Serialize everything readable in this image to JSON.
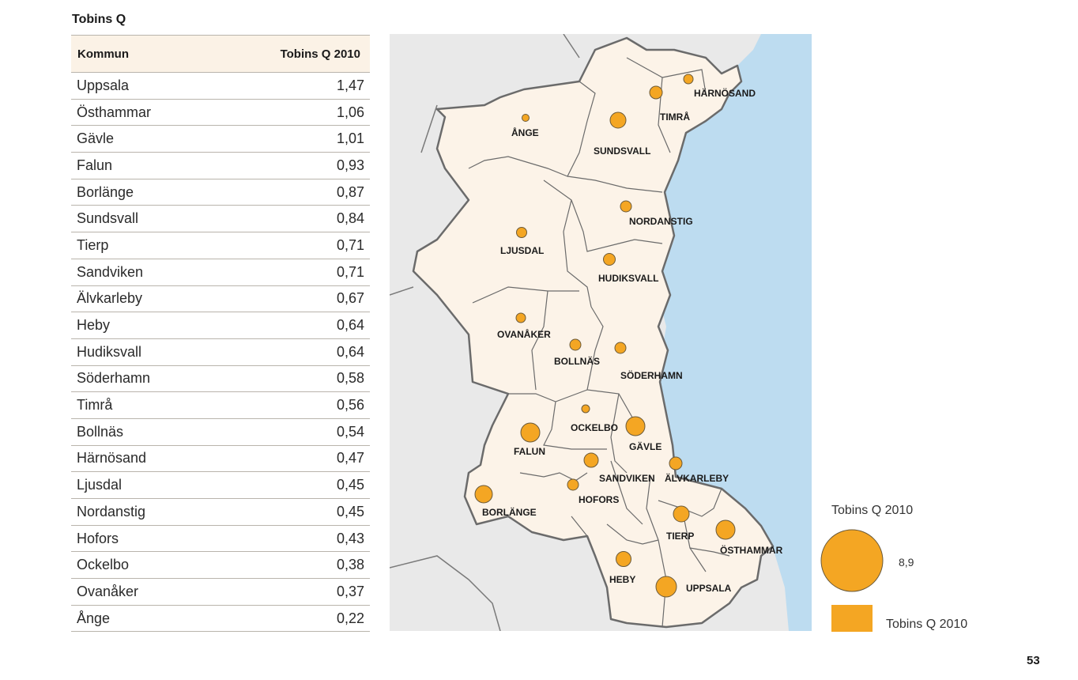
{
  "title": "Tobins Q",
  "table": {
    "header": {
      "col1": "Kommun",
      "col2": "Tobins Q 2010"
    },
    "rows": [
      {
        "name": "Uppsala",
        "value": "1,47"
      },
      {
        "name": "Östhammar",
        "value": "1,06"
      },
      {
        "name": "Gävle",
        "value": "1,01"
      },
      {
        "name": "Falun",
        "value": "0,93"
      },
      {
        "name": "Borlänge",
        "value": "0,87"
      },
      {
        "name": "Sundsvall",
        "value": "0,84"
      },
      {
        "name": "Tierp",
        "value": "0,71"
      },
      {
        "name": "Sandviken",
        "value": "0,71"
      },
      {
        "name": "Älvkarleby",
        "value": "0,67"
      },
      {
        "name": "Heby",
        "value": "0,64"
      },
      {
        "name": "Hudiksvall",
        "value": "0,64"
      },
      {
        "name": "Söderhamn",
        "value": "0,58"
      },
      {
        "name": "Timrå",
        "value": "0,56"
      },
      {
        "name": "Bollnäs",
        "value": "0,54"
      },
      {
        "name": "Härnösand",
        "value": "0,47"
      },
      {
        "name": "Ljusdal",
        "value": "0,45"
      },
      {
        "name": "Nordanstig",
        "value": "0,45"
      },
      {
        "name": "Hofors",
        "value": "0,43"
      },
      {
        "name": "Ockelbo",
        "value": "0,38"
      },
      {
        "name": "Ovanåker",
        "value": "0,37"
      },
      {
        "name": "Ånge",
        "value": "0,22"
      }
    ]
  },
  "map": {
    "labels": {
      "harnosand": "HÄRNÖSAND",
      "timra": "TIMRÅ",
      "ange": "ÅNGE",
      "sundsvall": "SUNDSVALL",
      "nordanstig": "NORDANSTIG",
      "ljusdal": "LJUSDAL",
      "hudiksvall": "HUDIKSVALL",
      "ovanaker": "OVANÅKER",
      "bollnas": "BOLLNÄS",
      "soderhamn": "SÖDERHAMN",
      "ockelbo": "OCKELBO",
      "falun": "FALUN",
      "gavle": "GÄVLE",
      "sandviken": "SANDVIKEN",
      "alvkarleby": "ÄLVKARLEBY",
      "hofors": "HOFORS",
      "borlange": "BORLÄNGE",
      "tierp": "TIERP",
      "osthammar": "ÖSTHAMMAR",
      "heby": "HEBY",
      "uppsala": "UPPSALA"
    },
    "colors": {
      "land": "#fcf3e8",
      "outside": "#e9e9e9",
      "sea": "#bddcf0",
      "circle": "#f4a623",
      "border": "#6b6b6b"
    }
  },
  "legend": {
    "title": "Tobins Q 2010",
    "max_value": "8,9",
    "square_label": "Tobins Q 2010"
  },
  "page_number": "53"
}
